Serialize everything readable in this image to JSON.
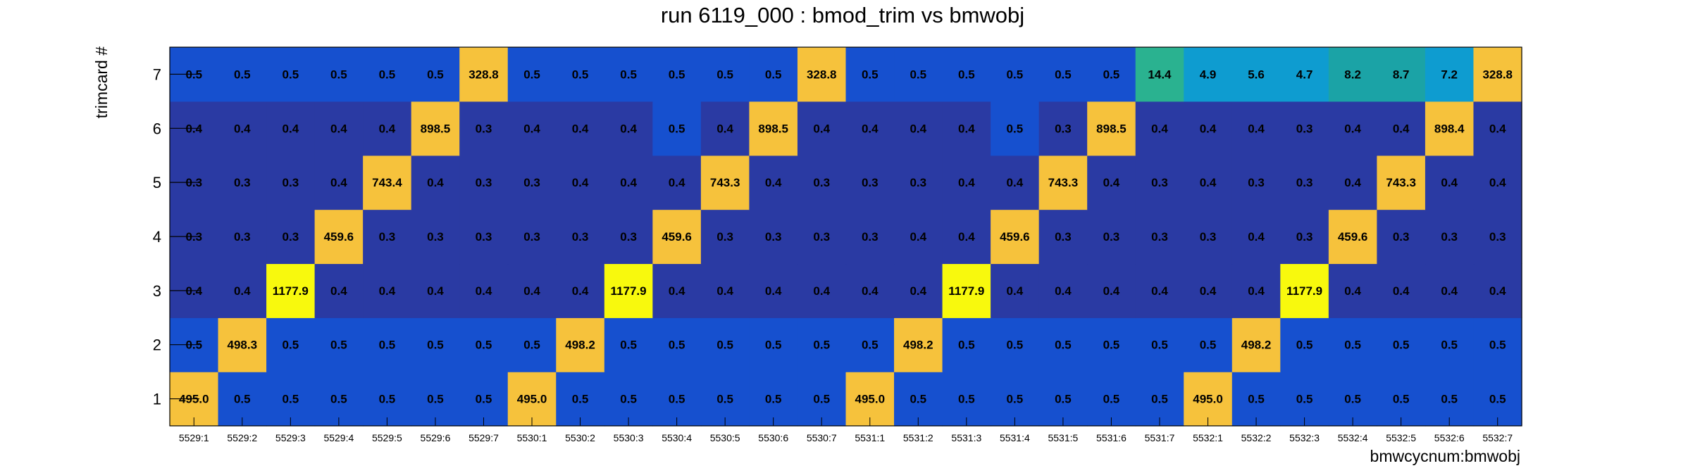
{
  "chart_data": {
    "type": "heatmap",
    "title": "run 6119_000 : bmod_trim vs bmwobj",
    "xlabel": "bmwcycnum:bmwobj",
    "ylabel": "trimcard #",
    "x_categories": [
      "5529:1",
      "5529:2",
      "5529:3",
      "5529:4",
      "5529:5",
      "5529:6",
      "5529:7",
      "5530:1",
      "5530:2",
      "5530:3",
      "5530:4",
      "5530:5",
      "5530:6",
      "5530:7",
      "5531:1",
      "5531:2",
      "5531:3",
      "5531:4",
      "5531:5",
      "5531:6",
      "5531:7",
      "5532:1",
      "5532:2",
      "5532:3",
      "5532:4",
      "5532:5",
      "5532:6",
      "5532:7"
    ],
    "y_categories": [
      "1",
      "2",
      "3",
      "4",
      "5",
      "6",
      "7"
    ],
    "values": [
      [
        "495.0",
        "0.5",
        "0.5",
        "0.5",
        "0.5",
        "0.5",
        "0.5",
        "495.0",
        "0.5",
        "0.5",
        "0.5",
        "0.5",
        "0.5",
        "0.5",
        "495.0",
        "0.5",
        "0.5",
        "0.5",
        "0.5",
        "0.5",
        "0.5",
        "495.0",
        "0.5",
        "0.5",
        "0.5",
        "0.5",
        "0.5",
        "0.5"
      ],
      [
        "0.5",
        "498.3",
        "0.5",
        "0.5",
        "0.5",
        "0.5",
        "0.5",
        "0.5",
        "498.2",
        "0.5",
        "0.5",
        "0.5",
        "0.5",
        "0.5",
        "0.5",
        "498.2",
        "0.5",
        "0.5",
        "0.5",
        "0.5",
        "0.5",
        "0.5",
        "498.2",
        "0.5",
        "0.5",
        "0.5",
        "0.5",
        "0.5"
      ],
      [
        "0.4",
        "0.4",
        "1177.9",
        "0.4",
        "0.4",
        "0.4",
        "0.4",
        "0.4",
        "0.4",
        "1177.9",
        "0.4",
        "0.4",
        "0.4",
        "0.4",
        "0.4",
        "0.4",
        "1177.9",
        "0.4",
        "0.4",
        "0.4",
        "0.4",
        "0.4",
        "0.4",
        "1177.9",
        "0.4",
        "0.4",
        "0.4",
        "0.4"
      ],
      [
        "0.3",
        "0.3",
        "0.3",
        "459.6",
        "0.3",
        "0.3",
        "0.3",
        "0.3",
        "0.3",
        "0.3",
        "459.6",
        "0.3",
        "0.3",
        "0.3",
        "0.3",
        "0.4",
        "0.4",
        "459.6",
        "0.3",
        "0.3",
        "0.3",
        "0.3",
        "0.4",
        "0.3",
        "459.6",
        "0.3",
        "0.3",
        "0.3"
      ],
      [
        "0.3",
        "0.3",
        "0.3",
        "0.4",
        "743.4",
        "0.4",
        "0.3",
        "0.3",
        "0.4",
        "0.4",
        "0.4",
        "743.3",
        "0.4",
        "0.3",
        "0.3",
        "0.3",
        "0.4",
        "0.4",
        "743.3",
        "0.4",
        "0.3",
        "0.4",
        "0.3",
        "0.3",
        "0.4",
        "743.3",
        "0.4",
        "0.4"
      ],
      [
        "0.4",
        "0.4",
        "0.4",
        "0.4",
        "0.4",
        "898.5",
        "0.3",
        "0.4",
        "0.4",
        "0.4",
        "0.5",
        "0.4",
        "898.5",
        "0.4",
        "0.4",
        "0.4",
        "0.4",
        "0.5",
        "0.3",
        "898.5",
        "0.4",
        "0.4",
        "0.4",
        "0.3",
        "0.4",
        "0.4",
        "898.4",
        "0.4"
      ],
      [
        "0.5",
        "0.5",
        "0.5",
        "0.5",
        "0.5",
        "0.5",
        "328.8",
        "0.5",
        "0.5",
        "0.5",
        "0.5",
        "0.5",
        "0.5",
        "328.8",
        "0.5",
        "0.5",
        "0.5",
        "0.5",
        "0.5",
        "0.5",
        "14.4",
        "4.9",
        "5.6",
        "4.7",
        "8.2",
        "8.7",
        "7.2",
        "328.8"
      ]
    ],
    "colors": {
      "very_low": "#2a3aa3",
      "low": "#1650cf",
      "mid_teal": "#1ba3a6",
      "mid_cyan": "#0e9cd0",
      "mid_green_teal": "#2ab290",
      "high": "#f6c23c",
      "very_high": "#f8f90d",
      "frame": "#000000"
    }
  }
}
